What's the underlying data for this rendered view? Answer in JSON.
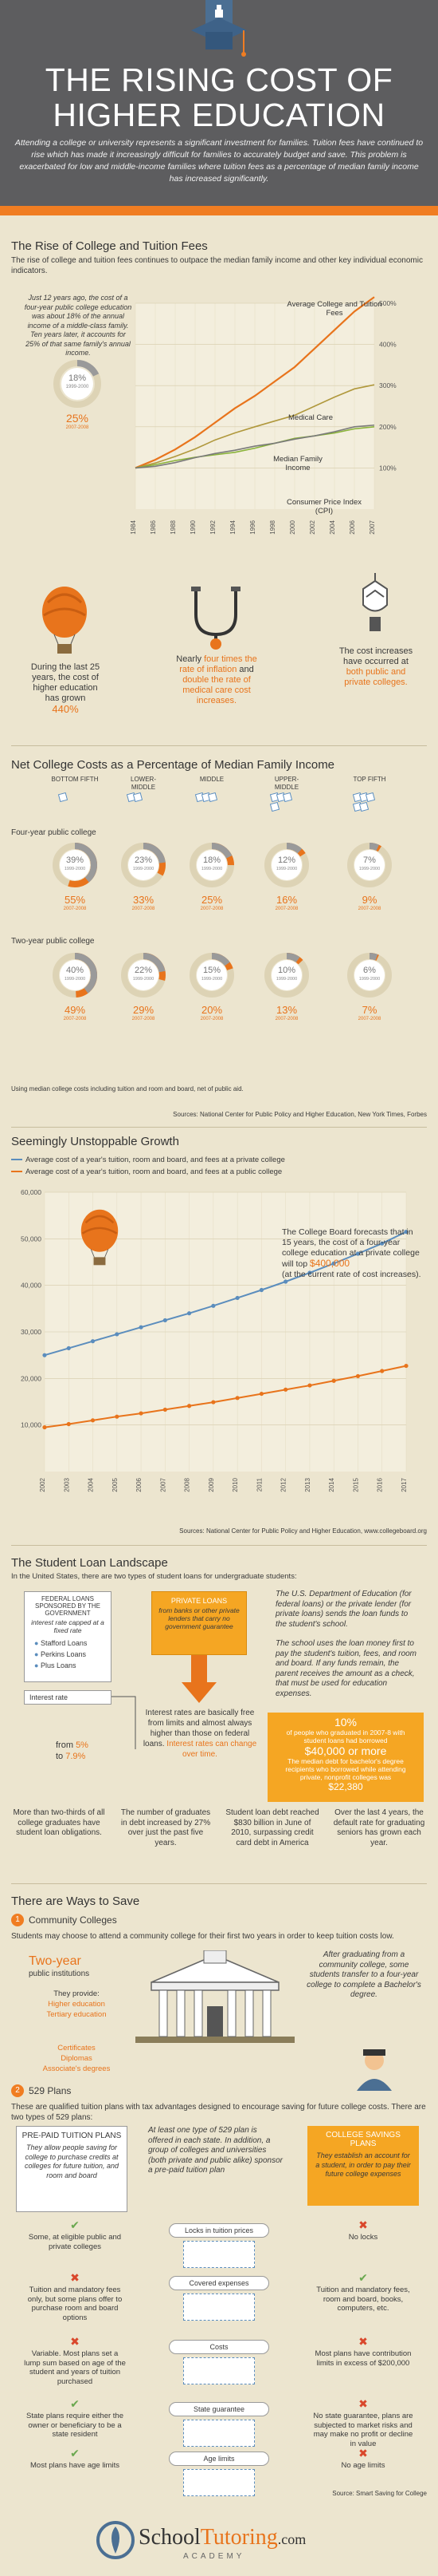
{
  "header": {
    "title_line1": "THE RISING COST OF",
    "title_line2": "HIGHER EDUCATION",
    "intro": "Attending a college or university represents a significant investment for families. Tuition fees have continued to rise which has made it increasingly difficult for families to accurately budget and save. This problem is exacerbated for low and middle-income families where tuition fees as a percentage of median family income has increased significantly."
  },
  "rise": {
    "title": "The Rise of College and Tuition Fees",
    "subtitle": "The rise of college and tuition fees continues to outpace the median family income and other key individual economic indicators.",
    "note": "Just 12 years ago, the cost of a four-year public college education was about 18% of the annual income of a middle-class family. Ten years later, it accounts for 25% of that same family's annual income.",
    "donut_pct": "18%",
    "donut_years": "1999-2000",
    "second_pct": "25%",
    "second_years": "2007-2008",
    "facts": [
      {
        "text": "During the last 25 years, the cost of higher education has grown",
        "highlight": "440%"
      },
      {
        "text_pre": "Nearly",
        "highlight": "four times the rate of inflation",
        "text_mid": "and",
        "highlight2": "double the rate of medical care cost increases."
      },
      {
        "text": "The cost increases have occurred at",
        "highlight": "both public and private colleges."
      }
    ]
  },
  "chart_data": [
    {
      "type": "line",
      "title": "",
      "x": [
        "1984",
        "1986",
        "1988",
        "1990",
        "1992",
        "1994",
        "1996",
        "1998",
        "2000",
        "2002",
        "2004",
        "2006",
        "2007"
      ],
      "y_tick_labels": [
        "100%",
        "200%",
        "300%",
        "400%",
        "500%"
      ],
      "ylim": [
        0,
        500
      ],
      "series": [
        {
          "name": "Average College and Tuition Fees",
          "color": "#e8741c",
          "values": [
            100,
            120,
            145,
            175,
            210,
            245,
            275,
            310,
            345,
            390,
            435,
            480,
            515
          ]
        },
        {
          "name": "Medical Care",
          "color": "#b0983c",
          "values": [
            100,
            112,
            128,
            146,
            168,
            185,
            200,
            214,
            228,
            250,
            272,
            292,
            302
          ]
        },
        {
          "name": "Median Family Income",
          "color": "#8ab33a",
          "values": [
            100,
            108,
            118,
            126,
            132,
            138,
            148,
            160,
            172,
            178,
            185,
            195,
            200
          ]
        },
        {
          "name": "Consumer Price Index (CPI)",
          "color": "#7a7a7a",
          "values": [
            100,
            104,
            113,
            125,
            135,
            143,
            153,
            160,
            170,
            178,
            188,
            200,
            204
          ]
        }
      ]
    },
    {
      "type": "line",
      "title": "Seemingly Unstoppable Growth",
      "x": [
        "2002",
        "2003",
        "2004",
        "2005",
        "2006",
        "2007",
        "2008",
        "2009",
        "2010",
        "2011",
        "2012",
        "2013",
        "2014",
        "2015",
        "2016",
        "2017"
      ],
      "y_tick_labels": [
        "10,000",
        "20,000",
        "30,000",
        "40,000",
        "50,000",
        "60,000"
      ],
      "ylim": [
        0,
        60000
      ],
      "series": [
        {
          "name": "Average cost of a year's tuition, room and board, and fees at a private college",
          "color": "#5b8dbd",
          "values": [
            25000,
            26500,
            28000,
            29500,
            31000,
            32500,
            34000,
            35600,
            37300,
            39000,
            40800,
            42700,
            44700,
            46800,
            49000,
            51500
          ]
        },
        {
          "name": "Average cost of a year's tuition, room and board, and fees at a public college",
          "color": "#e8741c",
          "values": [
            9500,
            10200,
            11000,
            11800,
            12500,
            13300,
            14100,
            14900,
            15800,
            16700,
            17600,
            18500,
            19500,
            20500,
            21600,
            22700
          ]
        }
      ]
    }
  ],
  "net": {
    "title": "Net College Costs as a Percentage of Median Family Income",
    "groups": [
      "BOTTOM FIFTH",
      "LOWER-MIDDLE",
      "MIDDLE",
      "UPPER-MIDDLE",
      "TOP FIFTH"
    ],
    "four_year_label": "Four-year public college",
    "two_year_label": "Two-year public college",
    "four_year": [
      {
        "p1": "39%",
        "y1": "1999-2000",
        "p2": "55%",
        "y2": "2007-2008"
      },
      {
        "p1": "23%",
        "y1": "1999-2000",
        "p2": "33%",
        "y2": "2007-2008"
      },
      {
        "p1": "18%",
        "y1": "1999-2000",
        "p2": "25%",
        "y2": "2007-2008"
      },
      {
        "p1": "12%",
        "y1": "1999-2000",
        "p2": "16%",
        "y2": "2007-2008"
      },
      {
        "p1": "7%",
        "y1": "1999-2000",
        "p2": "9%",
        "y2": "2007-2008"
      }
    ],
    "two_year": [
      {
        "p1": "40%",
        "y1": "1999-2000",
        "p2": "49%",
        "y2": "2007-2008"
      },
      {
        "p1": "22%",
        "y1": "1999-2000",
        "p2": "29%",
        "y2": "2007-2008"
      },
      {
        "p1": "15%",
        "y1": "1999-2000",
        "p2": "20%",
        "y2": "2007-2008"
      },
      {
        "p1": "10%",
        "y1": "1999-2000",
        "p2": "13%",
        "y2": "2007-2008"
      },
      {
        "p1": "6%",
        "y1": "1999-2000",
        "p2": "7%",
        "y2": "2007-2008"
      }
    ],
    "footnote": "Using median college costs including tuition and room and board, net of public aid.",
    "sources": "Sources:  National Center for Public Policy and Higher Education, New York Times, Forbes"
  },
  "growth": {
    "forecast": "The College Board forecasts that in 15 years, the cost of a four-year college education at a private college will top",
    "forecast_amount": "$400,000",
    "forecast_note": "(at the current rate of cost increases).",
    "sources": "Sources:  National Center for Public Policy and Higher Education, www.collegeboard.org"
  },
  "loans": {
    "title": "The Student Loan Landscape",
    "subtitle": "In the United States, there are two types of student loans for undergraduate students:",
    "federal_title": "FEDERAL LOANS SPONSORED BY THE GOVERNMENT",
    "federal_sub": "interest rate capped at a fixed rate",
    "federal_items": [
      "Stafford Loans",
      "Perkins Loans",
      "Plus Loans"
    ],
    "private_title": "PRIVATE LOANS",
    "private_sub": "from banks or other private lenders that carry no government guarantee",
    "dept_text": "The U.S. Department of Education (for federal loans) or the private lender (for private loans) sends the loan funds to the student's school.",
    "school_text": "The school uses the loan money first to pay the student's tuition, fees, and room and board. If any funds remain, the parent receives the amount as a check, that must be used for education expenses.",
    "interest_label": "Interest rate",
    "interest_from": "from",
    "interest_v1": "5%",
    "interest_to": "to",
    "interest_v2": "7.9%",
    "private_rates": "Interest rates are basically free from limits and almost always higher than those on federal loans.",
    "private_rates_tail": "Interest rates can change over time.",
    "debt_pct": "10%",
    "debt_text": "of people who graduated in 2007-8 with student loans had borrowed",
    "debt_amount": "$40,000 or more",
    "debt_median": "The median debt for bachelor's degree recipients who borrowed while attending private, nonprofit colleges was",
    "debt_median_amount": "$22,380",
    "stats": [
      {
        "text": "More than two-thirds of all college graduates have student loan obligations."
      },
      {
        "text": "The number of graduates in debt increased by 27% over just the past five years."
      },
      {
        "text": "Student loan debt reached $830 billion in June of 2010, surpassing credit card debt in America"
      },
      {
        "text": "Over the last 4 years, the default rate for graduating seniors has grown each year."
      }
    ]
  },
  "save": {
    "title": "There are Ways to Save",
    "cc_num": "1",
    "cc_title": "Community Colleges",
    "cc_text": "Students may choose to attend a community college for their first two years in order to keep tuition costs low.",
    "two_year": "Two-year",
    "two_year_sub": "public institutions",
    "provide": "They provide:",
    "provide_items": [
      "Higher education",
      "Tertiary education",
      "Certificates",
      "Diplomas",
      "Associate's degrees"
    ],
    "transfer": "After graduating from a community college, some students transfer to a four-year college to complete a Bachelor's degree.",
    "plan_num": "2",
    "plan_title": "529 Plans",
    "plan_text": "These are qualified tuition plans with tax advantages designed to encourage saving for future college costs. There are two types of 529 plans:",
    "prepaid_title": "PRE-PAID TUITION PLANS",
    "prepaid_text": "They allow people saving for college to purchase credits at colleges for future tuition, and room and board",
    "middle_text": "At least one type of 529 plan is offered in each state. In addition, a group of colleges and universities (both private and public alike) sponsor a pre-paid tuition plan",
    "savings_title": "COLLEGE SAVINGS PLANS",
    "savings_text": "They establish an account for a student, in order to pay their future college expenses",
    "rows": [
      {
        "label": "Locks in tuition prices",
        "left": "Some, at eligible public and private colleges",
        "right": "No locks",
        "left_yes": true,
        "right_yes": false
      },
      {
        "label": "Covered expenses",
        "left": "Tuition and mandatory fees only, but some plans offer to purchase room and board options",
        "right": "Tuition and mandatory fees, room and board, books, computers, etc.",
        "left_yes": false,
        "right_yes": true
      },
      {
        "label": "Costs",
        "left": "Variable. Most plans set a lump sum based on age of the student and years of tuition purchased",
        "right": "Most plans have contribution limits in excess of $200,000",
        "left_yes": false,
        "right_yes": false
      },
      {
        "label": "State guarantee",
        "left": "State plans require either the owner or beneficiary to be a state resident",
        "right": "No state guarantee, plans are subjected to market risks and may make no profit or decline in value",
        "left_yes": true,
        "right_yes": false
      },
      {
        "label": "Age limits",
        "left": "Most plans have age limits",
        "right": "No age limits",
        "left_yes": true,
        "right_yes": false
      }
    ],
    "source": "Source: Smart Saving for College"
  },
  "footer": {
    "brand1": "School",
    "brand2": "Tutoring",
    "brand3": ".com",
    "brand_sub": "ACADEMY"
  },
  "colors": {
    "orange": "#f07d22",
    "dark": "#5d5d5f",
    "blue": "#5b8dbd",
    "cream": "#ece5cf",
    "red": "#d9472b"
  }
}
